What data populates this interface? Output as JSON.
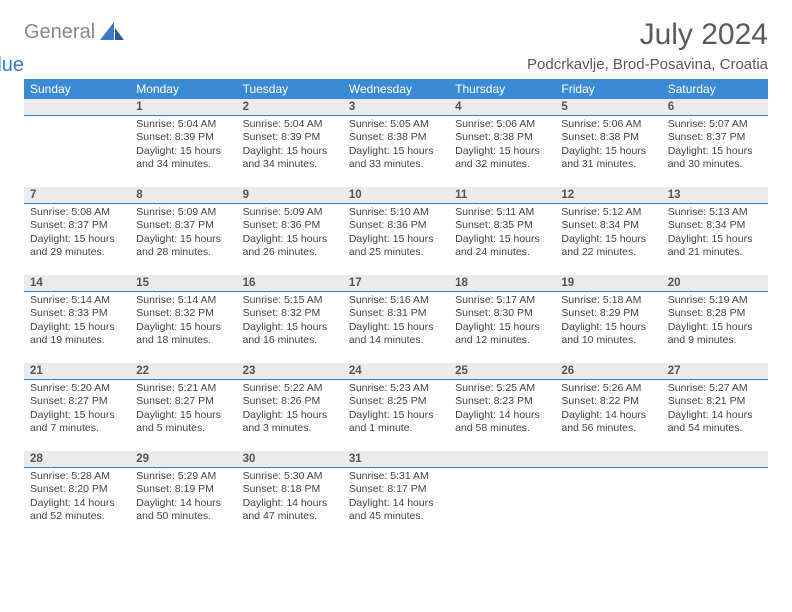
{
  "logo": {
    "word1": "General",
    "word2": "Blue"
  },
  "title": "July 2024",
  "location": "Podcrkavlje, Brod-Posavina, Croatia",
  "dow": [
    "Sunday",
    "Monday",
    "Tuesday",
    "Wednesday",
    "Thursday",
    "Friday",
    "Saturday"
  ],
  "colors": {
    "header_bg": "#3b8bd4",
    "header_fg": "#ffffff",
    "daynum_bg": "#ebebeb",
    "daynum_border": "#3b7bbf",
    "text": "#444444",
    "title_color": "#5a5a5a",
    "logo_gray": "#888888",
    "logo_blue": "#3b7bbf"
  },
  "fonts": {
    "title_pt": 30,
    "location_pt": 15,
    "dow_pt": 12,
    "daynum_pt": 11.5,
    "body_pt": 10.5
  },
  "weeks": [
    [
      {
        "n": "",
        "lines": []
      },
      {
        "n": "1",
        "lines": [
          "Sunrise: 5:04 AM",
          "Sunset: 8:39 PM",
          "Daylight: 15 hours",
          "and 34 minutes."
        ]
      },
      {
        "n": "2",
        "lines": [
          "Sunrise: 5:04 AM",
          "Sunset: 8:39 PM",
          "Daylight: 15 hours",
          "and 34 minutes."
        ]
      },
      {
        "n": "3",
        "lines": [
          "Sunrise: 5:05 AM",
          "Sunset: 8:38 PM",
          "Daylight: 15 hours",
          "and 33 minutes."
        ]
      },
      {
        "n": "4",
        "lines": [
          "Sunrise: 5:06 AM",
          "Sunset: 8:38 PM",
          "Daylight: 15 hours",
          "and 32 minutes."
        ]
      },
      {
        "n": "5",
        "lines": [
          "Sunrise: 5:06 AM",
          "Sunset: 8:38 PM",
          "Daylight: 15 hours",
          "and 31 minutes."
        ]
      },
      {
        "n": "6",
        "lines": [
          "Sunrise: 5:07 AM",
          "Sunset: 8:37 PM",
          "Daylight: 15 hours",
          "and 30 minutes."
        ]
      }
    ],
    [
      {
        "n": "7",
        "lines": [
          "Sunrise: 5:08 AM",
          "Sunset: 8:37 PM",
          "Daylight: 15 hours",
          "and 29 minutes."
        ]
      },
      {
        "n": "8",
        "lines": [
          "Sunrise: 5:09 AM",
          "Sunset: 8:37 PM",
          "Daylight: 15 hours",
          "and 28 minutes."
        ]
      },
      {
        "n": "9",
        "lines": [
          "Sunrise: 5:09 AM",
          "Sunset: 8:36 PM",
          "Daylight: 15 hours",
          "and 26 minutes."
        ]
      },
      {
        "n": "10",
        "lines": [
          "Sunrise: 5:10 AM",
          "Sunset: 8:36 PM",
          "Daylight: 15 hours",
          "and 25 minutes."
        ]
      },
      {
        "n": "11",
        "lines": [
          "Sunrise: 5:11 AM",
          "Sunset: 8:35 PM",
          "Daylight: 15 hours",
          "and 24 minutes."
        ]
      },
      {
        "n": "12",
        "lines": [
          "Sunrise: 5:12 AM",
          "Sunset: 8:34 PM",
          "Daylight: 15 hours",
          "and 22 minutes."
        ]
      },
      {
        "n": "13",
        "lines": [
          "Sunrise: 5:13 AM",
          "Sunset: 8:34 PM",
          "Daylight: 15 hours",
          "and 21 minutes."
        ]
      }
    ],
    [
      {
        "n": "14",
        "lines": [
          "Sunrise: 5:14 AM",
          "Sunset: 8:33 PM",
          "Daylight: 15 hours",
          "and 19 minutes."
        ]
      },
      {
        "n": "15",
        "lines": [
          "Sunrise: 5:14 AM",
          "Sunset: 8:32 PM",
          "Daylight: 15 hours",
          "and 18 minutes."
        ]
      },
      {
        "n": "16",
        "lines": [
          "Sunrise: 5:15 AM",
          "Sunset: 8:32 PM",
          "Daylight: 15 hours",
          "and 16 minutes."
        ]
      },
      {
        "n": "17",
        "lines": [
          "Sunrise: 5:16 AM",
          "Sunset: 8:31 PM",
          "Daylight: 15 hours",
          "and 14 minutes."
        ]
      },
      {
        "n": "18",
        "lines": [
          "Sunrise: 5:17 AM",
          "Sunset: 8:30 PM",
          "Daylight: 15 hours",
          "and 12 minutes."
        ]
      },
      {
        "n": "19",
        "lines": [
          "Sunrise: 5:18 AM",
          "Sunset: 8:29 PM",
          "Daylight: 15 hours",
          "and 10 minutes."
        ]
      },
      {
        "n": "20",
        "lines": [
          "Sunrise: 5:19 AM",
          "Sunset: 8:28 PM",
          "Daylight: 15 hours",
          "and 9 minutes."
        ]
      }
    ],
    [
      {
        "n": "21",
        "lines": [
          "Sunrise: 5:20 AM",
          "Sunset: 8:27 PM",
          "Daylight: 15 hours",
          "and 7 minutes."
        ]
      },
      {
        "n": "22",
        "lines": [
          "Sunrise: 5:21 AM",
          "Sunset: 8:27 PM",
          "Daylight: 15 hours",
          "and 5 minutes."
        ]
      },
      {
        "n": "23",
        "lines": [
          "Sunrise: 5:22 AM",
          "Sunset: 8:26 PM",
          "Daylight: 15 hours",
          "and 3 minutes."
        ]
      },
      {
        "n": "24",
        "lines": [
          "Sunrise: 5:23 AM",
          "Sunset: 8:25 PM",
          "Daylight: 15 hours",
          "and 1 minute."
        ]
      },
      {
        "n": "25",
        "lines": [
          "Sunrise: 5:25 AM",
          "Sunset: 8:23 PM",
          "Daylight: 14 hours",
          "and 58 minutes."
        ]
      },
      {
        "n": "26",
        "lines": [
          "Sunrise: 5:26 AM",
          "Sunset: 8:22 PM",
          "Daylight: 14 hours",
          "and 56 minutes."
        ]
      },
      {
        "n": "27",
        "lines": [
          "Sunrise: 5:27 AM",
          "Sunset: 8:21 PM",
          "Daylight: 14 hours",
          "and 54 minutes."
        ]
      }
    ],
    [
      {
        "n": "28",
        "lines": [
          "Sunrise: 5:28 AM",
          "Sunset: 8:20 PM",
          "Daylight: 14 hours",
          "and 52 minutes."
        ]
      },
      {
        "n": "29",
        "lines": [
          "Sunrise: 5:29 AM",
          "Sunset: 8:19 PM",
          "Daylight: 14 hours",
          "and 50 minutes."
        ]
      },
      {
        "n": "30",
        "lines": [
          "Sunrise: 5:30 AM",
          "Sunset: 8:18 PM",
          "Daylight: 14 hours",
          "and 47 minutes."
        ]
      },
      {
        "n": "31",
        "lines": [
          "Sunrise: 5:31 AM",
          "Sunset: 8:17 PM",
          "Daylight: 14 hours",
          "and 45 minutes."
        ]
      },
      {
        "n": "",
        "lines": []
      },
      {
        "n": "",
        "lines": []
      },
      {
        "n": "",
        "lines": []
      }
    ]
  ]
}
